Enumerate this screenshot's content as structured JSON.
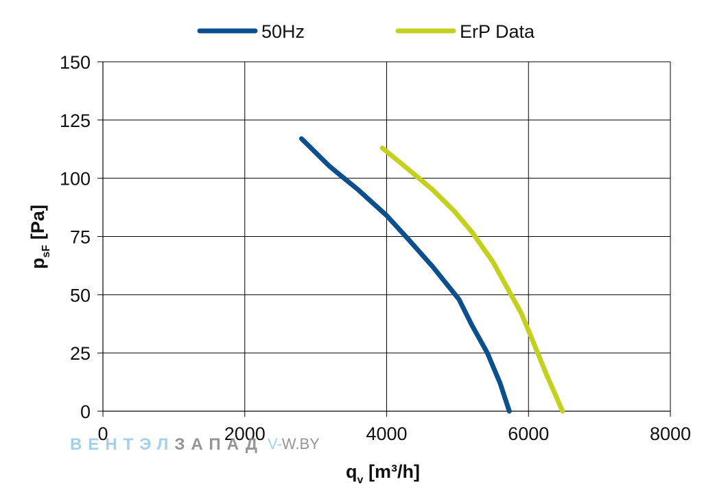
{
  "chart_data": {
    "type": "line",
    "title": "",
    "xlabel": {
      "main": "q",
      "sub": "v",
      "tail": " [m³/h]"
    },
    "ylabel": {
      "main": "p",
      "sub": "sF",
      "tail": " [Pa]"
    },
    "xlim": [
      0,
      8000
    ],
    "ylim": [
      0,
      150
    ],
    "xticks": [
      0,
      2000,
      4000,
      6000,
      8000
    ],
    "yticks": [
      0,
      25,
      50,
      75,
      100,
      125,
      150
    ],
    "grid": true,
    "legend_position": "top-center",
    "series": [
      {
        "name": "50Hz",
        "color": "#0b4f8d",
        "x": [
          2800,
          3200,
          3600,
          4000,
          4300,
          4650,
          5020,
          5200,
          5420,
          5600,
          5730
        ],
        "y": [
          117,
          105,
          95,
          84,
          74,
          62,
          48,
          37,
          25,
          12,
          0
        ]
      },
      {
        "name": "ErP Data",
        "color": "#c3d11e",
        "x": [
          3940,
          4300,
          4650,
          4950,
          5200,
          5500,
          5700,
          5900,
          6050,
          6250,
          6480
        ],
        "y": [
          113,
          104,
          95,
          86,
          77,
          64,
          53,
          42,
          31,
          16,
          0
        ]
      }
    ]
  },
  "watermark": {
    "brand_part1": "ВЕНТЭЛ",
    "brand_part2": "ЗАПАД",
    "site_prefix": "V-",
    "site_rest": "W.BY",
    "color_part1": "#9ccbe8",
    "color_part2": "#8a8a8a"
  }
}
